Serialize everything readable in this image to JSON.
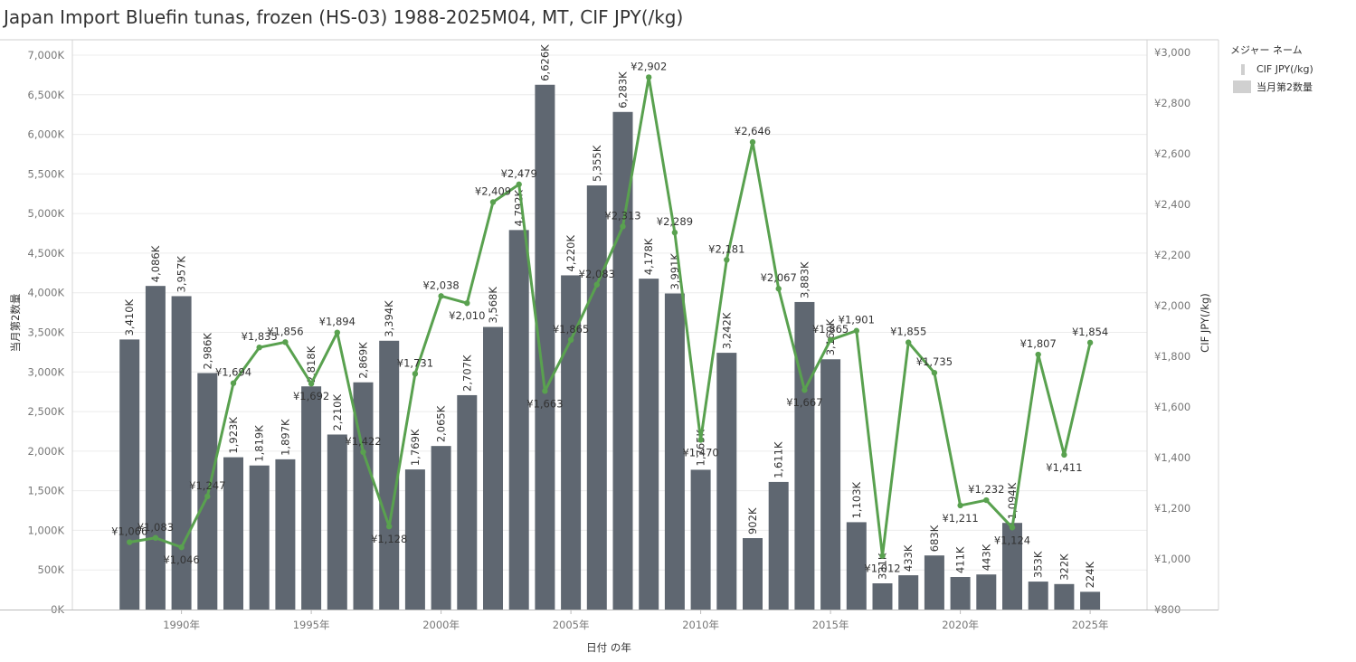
{
  "title": "Japan Import Bluefin tunas, frozen (HS-03) 1988-2025M04, MT, CIF JPY(/kg)",
  "legend": {
    "title": "メジャー ネーム",
    "items": [
      "CIF JPY(/kg)",
      "当月第2数量"
    ]
  },
  "colors": {
    "bar": "#5f6771",
    "line": "#59a14f",
    "grid": "#ececec",
    "axis": "#bbbbbb"
  },
  "chart_data": {
    "type": "bar",
    "xlabel": "日付 の年",
    "ylabel_left": "当月第2数量",
    "ylabel_right": "CIF JPY(/kg)",
    "ylim_left": [
      0,
      7000000
    ],
    "ylim_right": [
      800,
      3000
    ],
    "left_ticks": [
      "0K",
      "500K",
      "1,000K",
      "1,500K",
      "2,000K",
      "2,500K",
      "3,000K",
      "3,500K",
      "4,000K",
      "4,500K",
      "5,000K",
      "5,500K",
      "6,000K",
      "6,500K",
      "7,000K"
    ],
    "right_ticks": [
      "¥800",
      "¥1,000",
      "¥1,200",
      "¥1,400",
      "¥1,600",
      "¥1,800",
      "¥2,000",
      "¥2,200",
      "¥2,400",
      "¥2,600",
      "¥2,800",
      "¥3,000"
    ],
    "x_ticks": [
      "1990年",
      "1995年",
      "2000年",
      "2005年",
      "2010年",
      "2015年",
      "2020年",
      "2025年"
    ],
    "years": [
      1988,
      1989,
      1990,
      1991,
      1992,
      1993,
      1994,
      1995,
      1996,
      1997,
      1998,
      1999,
      2000,
      2001,
      2002,
      2003,
      2004,
      2005,
      2006,
      2007,
      2008,
      2009,
      2010,
      2011,
      2012,
      2013,
      2014,
      2015,
      2016,
      2017,
      2018,
      2019,
      2020,
      2021,
      2022,
      2023,
      2024,
      2025
    ],
    "series": [
      {
        "name": "当月第2数量",
        "type": "bar",
        "values": [
          3410000,
          4086000,
          3957000,
          2986000,
          1923000,
          1819000,
          1897000,
          2818000,
          2210000,
          2869000,
          3394000,
          1769000,
          2065000,
          2707000,
          3568000,
          4792000,
          6626000,
          4220000,
          5355000,
          6283000,
          4178000,
          3991000,
          1765000,
          3242000,
          902000,
          1611000,
          3883000,
          3160000,
          1103000,
          331000,
          433000,
          683000,
          411000,
          443000,
          1094000,
          353000,
          322000,
          224000
        ],
        "labels": [
          "3,410K",
          "4,086K",
          "3,957K",
          "2,986K",
          "1,923K",
          "1,819K",
          "1,897K",
          "2,818K",
          "2,210K",
          "2,869K",
          "3,394K",
          "1,769K",
          "2,065K",
          "2,707K",
          "3,568K",
          "4,792K",
          "6,626K",
          "4,220K",
          "5,355K",
          "6,283K",
          "4,178K",
          "3,991K",
          "1,765K",
          "3,242K",
          "902K",
          "1,611K",
          "3,883K",
          "3,160K",
          "1,103K",
          "331K",
          "433K",
          "683K",
          "411K",
          "443K",
          "1,094K",
          "353K",
          "322K",
          "224K"
        ]
      },
      {
        "name": "CIF JPY(/kg)",
        "type": "line",
        "values": [
          1066,
          1083,
          1046,
          1247,
          1694,
          1835,
          1856,
          1692,
          1894,
          1422,
          1128,
          1731,
          2038,
          2010,
          2409,
          2479,
          1663,
          1865,
          2083,
          2313,
          2902,
          2289,
          1470,
          2181,
          2646,
          2067,
          1667,
          1865,
          1901,
          1012,
          1855,
          1735,
          1211,
          1232,
          1124,
          1807,
          1411,
          1854
        ],
        "labels": [
          "¥1,066",
          "¥1,083",
          "¥1,046",
          "¥1,247",
          "¥1,694",
          "¥1,835",
          "¥1,856",
          "¥1,692",
          "¥1,894",
          "¥1,422",
          "¥1,128",
          "¥1,731",
          "¥2,038",
          "¥2,010",
          "¥2,409",
          "¥2,479",
          "¥1,663",
          "¥1,865",
          "¥2,083",
          "¥2,313",
          "¥2,902",
          "¥2,289",
          "¥1,470",
          "¥2,181",
          "¥2,646",
          "¥2,067",
          "¥1,667",
          "¥1,865",
          "¥1,901",
          "¥1,012",
          "¥1,855",
          "¥1,735",
          "¥1,211",
          "¥1,232",
          "¥1,124",
          "¥1,807",
          "¥1,411",
          "¥1,854"
        ]
      }
    ],
    "grid": true,
    "legend_position": "top-right"
  }
}
